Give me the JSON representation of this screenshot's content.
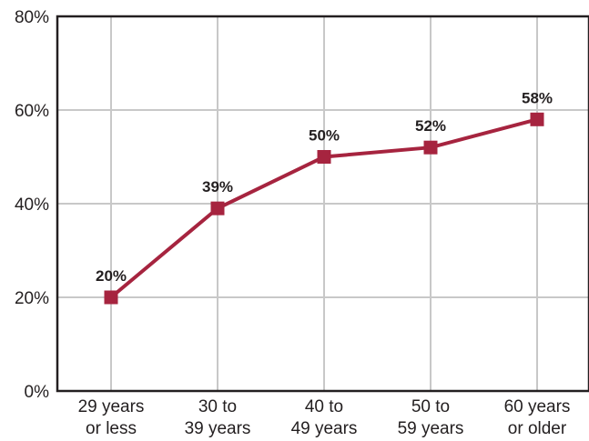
{
  "chart_data": {
    "type": "line",
    "categories": [
      [
        "29 years",
        "or less"
      ],
      [
        "30 to",
        "39 years"
      ],
      [
        "40 to",
        "49 years"
      ],
      [
        "50 to",
        "59 years"
      ],
      [
        "60 years",
        "or older"
      ]
    ],
    "values": [
      20,
      39,
      50,
      52,
      58
    ],
    "data_labels": [
      "20%",
      "39%",
      "50%",
      "52%",
      "58%"
    ],
    "ylim": [
      0,
      80
    ],
    "yticks": [
      0,
      20,
      40,
      60,
      80
    ],
    "ytick_labels": [
      "0%",
      "20%",
      "40%",
      "60%",
      "80%"
    ],
    "grid": true,
    "title": "",
    "xlabel": "",
    "ylabel": "",
    "colors": {
      "series": "#a6243f",
      "grid": "#c8c8c8",
      "axis": "#231f20"
    }
  }
}
